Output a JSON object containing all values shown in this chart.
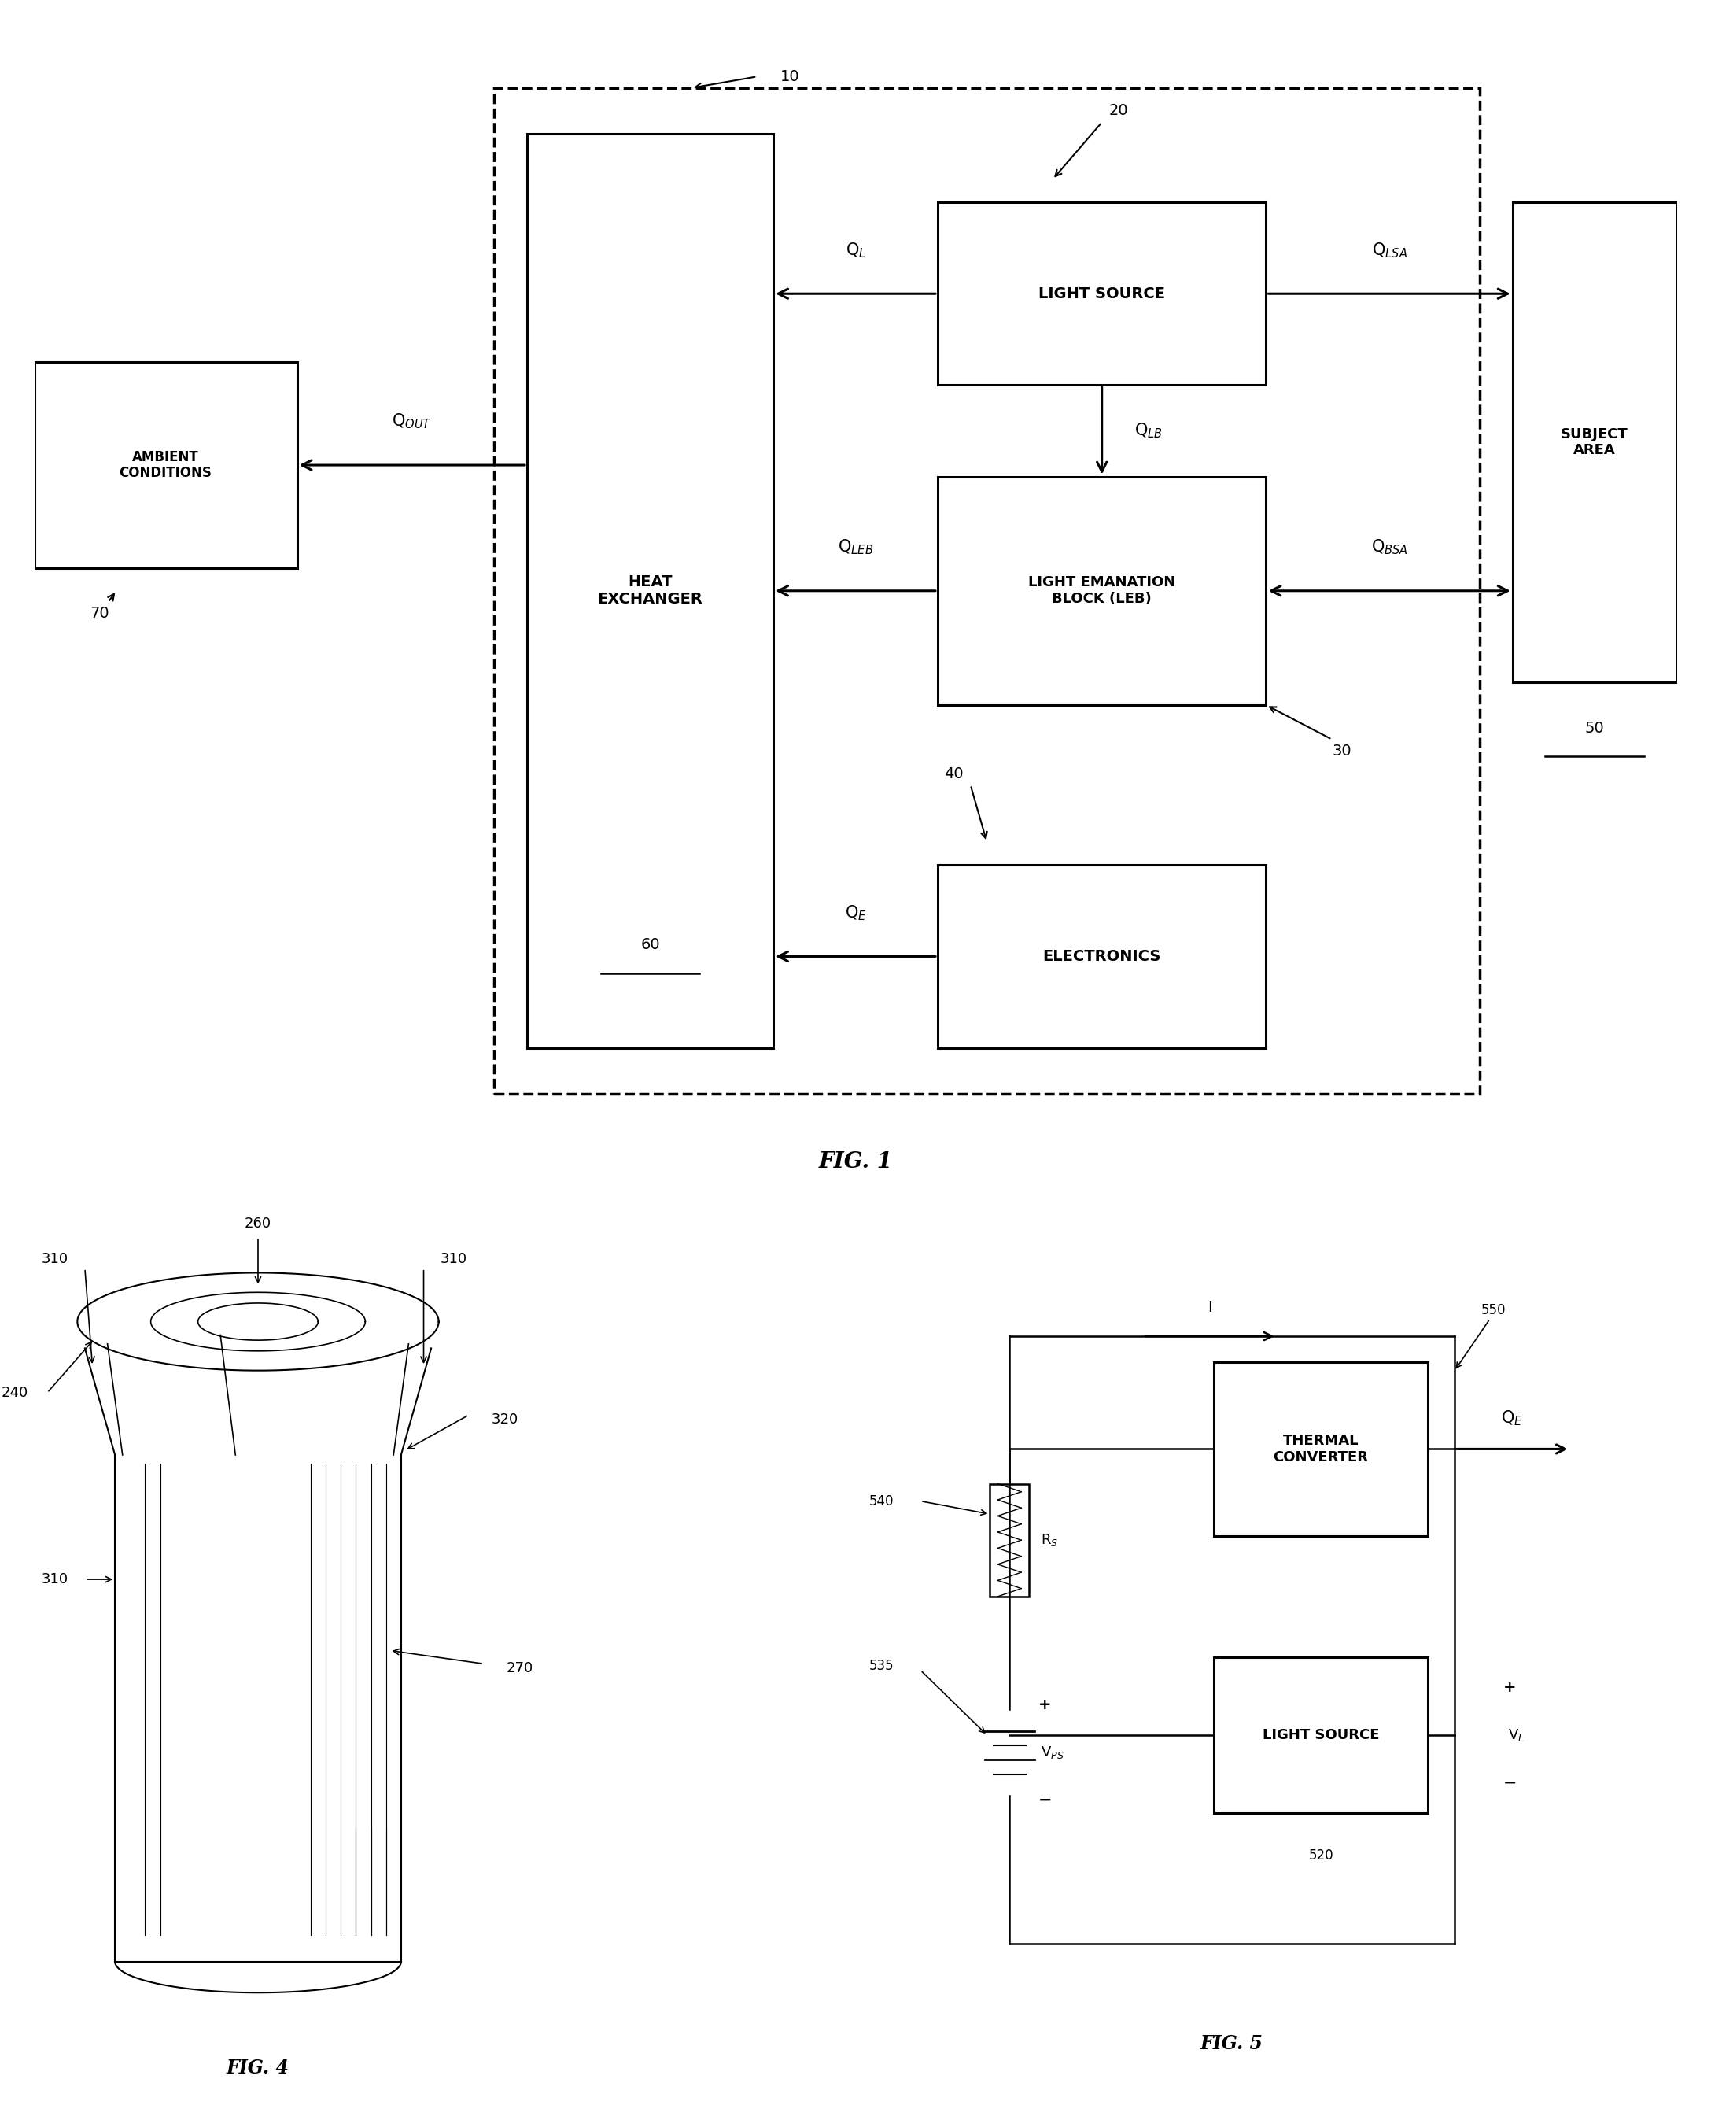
{
  "bg_color": "#ffffff",
  "fig_width": 21.75,
  "fig_height": 26.89,
  "fig1": {
    "title": "FIG. 1",
    "label_10": "10",
    "label_20": "20",
    "label_30": "30",
    "label_40": "40",
    "label_50": "50",
    "label_60": "60",
    "label_70": "70",
    "box_light_source": "LIGHT SOURCE",
    "box_leb": "LIGHT EMANATION\nBLOCK (LEB)",
    "box_electronics": "ELECTRONICS",
    "box_heat_exchanger": "HEAT\nEXCHANGER",
    "box_subject_area": "SUBJECT\nAREA",
    "box_ambient": "AMBIENT\nCONDITIONS",
    "arrow_QL": "Q$_L$",
    "arrow_QLB": "Q$_{LB}$",
    "arrow_QLEB": "Q$_{LEB}$",
    "arrow_QE": "Q$_E$",
    "arrow_QOUT": "Q$_{OUT}$",
    "arrow_QLSA": "Q$_{LSA}$",
    "arrow_QBSA": "Q$_{BSA}$"
  },
  "fig4": {
    "title": "FIG. 4",
    "label_240": "240",
    "label_260": "260",
    "label_270": "270",
    "label_310a": "310",
    "label_310b": "310",
    "label_310c": "310",
    "label_320": "320"
  },
  "fig5": {
    "title": "FIG. 5",
    "label_520": "520",
    "label_535": "535",
    "label_540": "540",
    "label_550": "550",
    "box_thermal": "THERMAL\nCONVERTER",
    "box_light_source": "LIGHT SOURCE",
    "label_I": "I",
    "label_Rs": "R$_S$",
    "label_Vps": "V$_{PS}$",
    "label_QE": "Q$_E$",
    "label_VL": "V$_L$",
    "label_plus1": "+",
    "label_minus1": "−",
    "label_plus2": "+",
    "label_minus2": "−"
  }
}
